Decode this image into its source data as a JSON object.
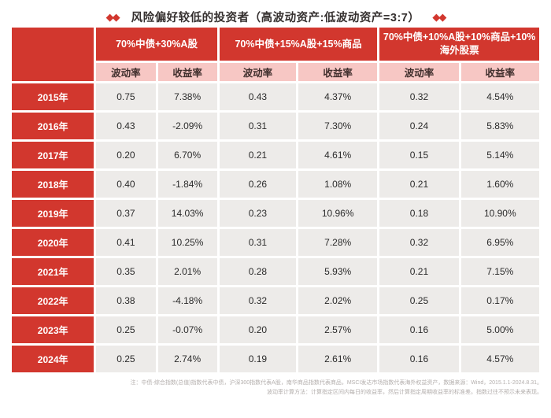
{
  "title": {
    "text": "风险偏好较低的投资者（高波动资产:低波动资产=3:7）",
    "left_icon_glyph": "◆◆",
    "right_icon_glyph": "◆◆"
  },
  "chart_data": {
    "type": "table",
    "title": "风险偏好较低的投资者（高波动资产:低波动资产=3:7）",
    "column_groups": [
      "70%中债+30%A股",
      "70%中债+15%A股+15%商品",
      "70%中债+10%A股+10%商品+10%海外股票"
    ],
    "sub_headers": [
      "波动率",
      "收益率"
    ],
    "rows": [
      {
        "year": "2015年",
        "values": [
          "0.75",
          "7.38%",
          "0.43",
          "4.37%",
          "0.32",
          "4.54%"
        ]
      },
      {
        "year": "2016年",
        "values": [
          "0.43",
          "-2.09%",
          "0.31",
          "7.30%",
          "0.24",
          "5.83%"
        ]
      },
      {
        "year": "2017年",
        "values": [
          "0.20",
          "6.70%",
          "0.21",
          "4.61%",
          "0.15",
          "5.14%"
        ]
      },
      {
        "year": "2018年",
        "values": [
          "0.40",
          "-1.84%",
          "0.26",
          "1.08%",
          "0.21",
          "1.60%"
        ]
      },
      {
        "year": "2019年",
        "values": [
          "0.37",
          "14.03%",
          "0.23",
          "10.96%",
          "0.18",
          "10.90%"
        ]
      },
      {
        "year": "2020年",
        "values": [
          "0.41",
          "10.25%",
          "0.31",
          "7.28%",
          "0.32",
          "6.95%"
        ]
      },
      {
        "year": "2021年",
        "values": [
          "0.35",
          "2.01%",
          "0.28",
          "5.93%",
          "0.21",
          "7.15%"
        ]
      },
      {
        "year": "2022年",
        "values": [
          "0.38",
          "-4.18%",
          "0.32",
          "2.02%",
          "0.25",
          "0.17%"
        ]
      },
      {
        "year": "2023年",
        "values": [
          "0.25",
          "-0.07%",
          "0.20",
          "2.57%",
          "0.16",
          "5.00%"
        ]
      },
      {
        "year": "2024年",
        "values": [
          "0.25",
          "2.74%",
          "0.19",
          "2.61%",
          "0.16",
          "4.57%"
        ]
      }
    ]
  },
  "footnote": {
    "line1": "注：中债-综合指数(总值)指数代表中债，沪深300指数代表A股，南华商品指数代表商品，MSCI发达市场指数代表海外权益资产，数据来源：Wind，2015.1.1-2024.8.31。",
    "line2": "波动率计算方法：计算指定区间内每日的收益率，然后计算指定周期收益率的标准差。指数过往不预示未来表现。"
  },
  "colors": {
    "header_red": "#d2372e",
    "subheader_pink": "#f7c7c4",
    "cell_gray": "#edebe9",
    "cell_text": "#2b2b2b",
    "note_gray": "#b3aeac",
    "diamond_red": "#d2352c"
  }
}
